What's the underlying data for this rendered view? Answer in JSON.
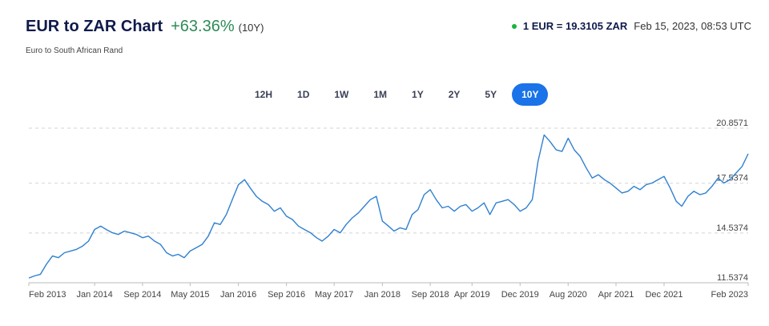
{
  "header": {
    "title": "EUR to ZAR Chart",
    "change": "+63.36%",
    "period": "(10Y)",
    "subtitle": "Euro to South African Rand"
  },
  "rate": {
    "live_icon": "live-dot-icon",
    "value": "1 EUR = 19.3105 ZAR",
    "timestamp": "Feb 15, 2023, 08:53 UTC"
  },
  "ranges": [
    {
      "label": "12H",
      "active": false
    },
    {
      "label": "1D",
      "active": false
    },
    {
      "label": "1W",
      "active": false
    },
    {
      "label": "1M",
      "active": false
    },
    {
      "label": "1Y",
      "active": false
    },
    {
      "label": "2Y",
      "active": false
    },
    {
      "label": "5Y",
      "active": false
    },
    {
      "label": "10Y",
      "active": true
    }
  ],
  "colors": {
    "accent": "#1a73e8",
    "line": "#2f80d0",
    "positive": "#2e8b57",
    "live": "#19b33e",
    "grid": "#d3d3d3",
    "axis": "#444444"
  },
  "chart_data": {
    "type": "line",
    "title": "",
    "xlabel": "",
    "ylabel": "",
    "grid": true,
    "ylim": [
      11.5374,
      20.8571
    ],
    "xlim": [
      "2013-02-15",
      "2023-02-15"
    ],
    "y_ticks": [
      "20.8571",
      "17.5374",
      "14.5374",
      "11.5374"
    ],
    "x_ticks": [
      {
        "label": "Feb 2013",
        "date": "2013-02-15"
      },
      {
        "label": "Jan 2014",
        "date": "2014-01-15"
      },
      {
        "label": "Sep 2014",
        "date": "2014-09-15"
      },
      {
        "label": "May 2015",
        "date": "2015-05-15"
      },
      {
        "label": "Jan 2016",
        "date": "2016-01-15"
      },
      {
        "label": "Sep 2016",
        "date": "2016-09-15"
      },
      {
        "label": "May 2017",
        "date": "2017-05-15"
      },
      {
        "label": "Jan 2018",
        "date": "2018-01-15"
      },
      {
        "label": "Sep 2018",
        "date": "2018-09-15"
      },
      {
        "label": "Apr 2019",
        "date": "2019-04-15"
      },
      {
        "label": "Dec 2019",
        "date": "2019-12-15"
      },
      {
        "label": "Aug 2020",
        "date": "2020-08-15"
      },
      {
        "label": "Apr 2021",
        "date": "2021-04-15"
      },
      {
        "label": "Dec 2021",
        "date": "2021-12-15"
      },
      {
        "label": "Feb 2023",
        "date": "2023-02-15"
      }
    ],
    "series": [
      {
        "x": [
          "2013-02-15",
          "2013-03-15",
          "2013-04-15",
          "2013-05-15",
          "2013-06-15",
          "2013-07-15",
          "2013-08-15",
          "2013-09-15",
          "2013-10-15",
          "2013-11-15",
          "2013-12-15",
          "2014-01-15",
          "2014-02-15",
          "2014-03-15",
          "2014-04-15",
          "2014-05-15",
          "2014-06-15",
          "2014-07-15",
          "2014-08-15",
          "2014-09-15",
          "2014-10-15",
          "2014-11-15",
          "2014-12-15",
          "2015-01-15",
          "2015-02-15",
          "2015-03-15",
          "2015-04-15",
          "2015-05-15",
          "2015-06-15",
          "2015-07-15",
          "2015-08-15",
          "2015-09-15",
          "2015-10-15",
          "2015-11-15",
          "2015-12-15",
          "2016-01-15",
          "2016-02-15",
          "2016-03-15",
          "2016-04-15",
          "2016-05-15",
          "2016-06-15",
          "2016-07-15",
          "2016-08-15",
          "2016-09-15",
          "2016-10-15",
          "2016-11-15",
          "2016-12-15",
          "2017-01-15",
          "2017-02-15",
          "2017-03-15",
          "2017-04-15",
          "2017-05-15",
          "2017-06-15",
          "2017-07-15",
          "2017-08-15",
          "2017-09-15",
          "2017-10-15",
          "2017-11-15",
          "2017-12-15",
          "2018-01-15",
          "2018-02-15",
          "2018-03-15",
          "2018-04-15",
          "2018-05-15",
          "2018-06-15",
          "2018-07-15",
          "2018-08-15",
          "2018-09-15",
          "2018-10-15",
          "2018-11-15",
          "2018-12-15",
          "2019-01-15",
          "2019-02-15",
          "2019-03-15",
          "2019-04-15",
          "2019-05-15",
          "2019-06-15",
          "2019-07-15",
          "2019-08-15",
          "2019-09-15",
          "2019-10-15",
          "2019-11-15",
          "2019-12-15",
          "2020-01-15",
          "2020-02-15",
          "2020-03-15",
          "2020-04-15",
          "2020-05-15",
          "2020-06-15",
          "2020-07-15",
          "2020-08-15",
          "2020-09-15",
          "2020-10-15",
          "2020-11-15",
          "2020-12-15",
          "2021-01-15",
          "2021-02-15",
          "2021-03-15",
          "2021-04-15",
          "2021-05-15",
          "2021-06-15",
          "2021-07-15",
          "2021-08-15",
          "2021-09-15",
          "2021-10-15",
          "2021-11-15",
          "2021-12-15",
          "2022-01-15",
          "2022-02-15",
          "2022-03-15",
          "2022-04-15",
          "2022-05-15",
          "2022-06-15",
          "2022-07-15",
          "2022-08-15",
          "2022-09-15",
          "2022-10-15",
          "2022-11-15",
          "2022-12-15",
          "2023-01-15",
          "2023-02-15"
        ],
        "values": [
          11.82,
          11.95,
          12.05,
          12.65,
          13.15,
          13.05,
          13.35,
          13.45,
          13.55,
          13.75,
          14.05,
          14.75,
          14.95,
          14.75,
          14.55,
          14.45,
          14.65,
          14.55,
          14.45,
          14.25,
          14.35,
          14.05,
          13.85,
          13.35,
          13.15,
          13.25,
          13.05,
          13.45,
          13.65,
          13.85,
          14.35,
          15.15,
          15.05,
          15.65,
          16.55,
          17.45,
          17.75,
          17.25,
          16.75,
          16.45,
          16.25,
          15.85,
          16.05,
          15.55,
          15.35,
          14.95,
          14.75,
          14.55,
          14.25,
          14.05,
          14.35,
          14.75,
          14.55,
          15.05,
          15.45,
          15.75,
          16.15,
          16.55,
          16.75,
          15.25,
          14.95,
          14.65,
          14.85,
          14.75,
          15.65,
          15.95,
          16.85,
          17.15,
          16.55,
          16.05,
          16.15,
          15.85,
          16.15,
          16.25,
          15.85,
          16.05,
          16.35,
          15.65,
          16.35,
          16.45,
          16.55,
          16.25,
          15.85,
          16.05,
          16.55,
          18.85,
          20.45,
          20.05,
          19.55,
          19.45,
          20.25,
          19.55,
          19.15,
          18.45,
          17.85,
          18.05,
          17.75,
          17.55,
          17.25,
          16.95,
          17.05,
          17.35,
          17.15,
          17.45,
          17.55,
          17.75,
          17.95,
          17.25,
          16.45,
          16.15,
          16.75,
          17.05,
          16.85,
          16.95,
          17.35,
          17.85,
          17.55,
          17.75,
          18.15,
          18.55,
          19.31
        ]
      }
    ]
  }
}
